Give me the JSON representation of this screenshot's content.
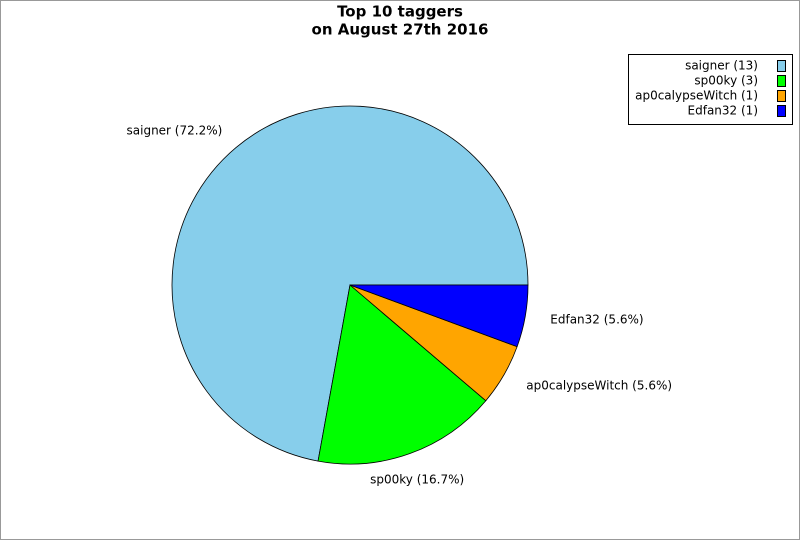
{
  "chart_data": {
    "type": "pie",
    "title": "Top 10 taggers",
    "subtitle": "on August 27th 2016",
    "categories": [
      "saigner (13)",
      "sp00ky (3)",
      "ap0calypseWitch (1)",
      "Edfan32 (1)"
    ],
    "values": [
      72.2,
      16.7,
      5.6,
      5.6
    ],
    "value_labels": [
      "saigner (72.2%)",
      "sp00ky (16.7%)",
      "ap0calypseWitch (5.6%)",
      "Edfan32 (5.6%)"
    ],
    "colors": [
      "#87ceeb",
      "#00ff00",
      "#ffa500",
      "#0000ff"
    ],
    "legend": "upper right"
  }
}
